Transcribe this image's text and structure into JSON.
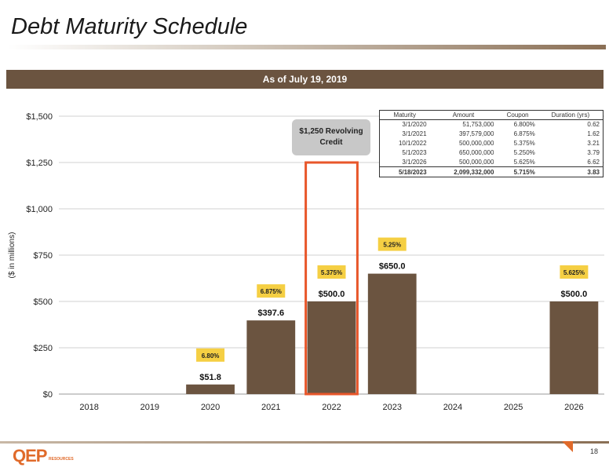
{
  "slide": {
    "title": "Debt Maturity Schedule",
    "as_of": "As of July 19, 2019",
    "page_number": "18",
    "logo_text": "QEP",
    "logo_subtext": "RESOURCES",
    "callout": "$1,250 Revolving Credit"
  },
  "colors": {
    "bar": "#6b5440",
    "highlight": "#e8562a",
    "label_badge": "#f5cf43",
    "grid": "#d0d0d0"
  },
  "table": {
    "headers": [
      "Maturity",
      "Amount",
      "Coupon",
      "Duration (yrs)"
    ],
    "rows": [
      [
        "3/1/2020",
        "51,753,000",
        "6.800%",
        "0.62"
      ],
      [
        "3/1/2021",
        "397,579,000",
        "6.875%",
        "1.62"
      ],
      [
        "10/1/2022",
        "500,000,000",
        "5.375%",
        "3.21"
      ],
      [
        "5/1/2023",
        "650,000,000",
        "5.250%",
        "3.79"
      ],
      [
        "3/1/2026",
        "500,000,000",
        "5.625%",
        "6.62"
      ]
    ],
    "total": [
      "5/18/2023",
      "2,099,332,000",
      "5.715%",
      "3.83"
    ]
  },
  "chart_data": {
    "type": "bar",
    "title": "",
    "xlabel": "",
    "ylabel": "($ in millions)",
    "categories": [
      "2018",
      "2019",
      "2020",
      "2021",
      "2022",
      "2023",
      "2024",
      "2025",
      "2026"
    ],
    "values": [
      0,
      0,
      51.8,
      397.6,
      500.0,
      650.0,
      0,
      0,
      500.0
    ],
    "value_labels": [
      "",
      "",
      "$51.8",
      "$397.6",
      "$500.0",
      "$650.0",
      "",
      "",
      "$500.0"
    ],
    "coupon_labels": [
      "",
      "",
      "6.80%",
      "6.875%",
      "5.375%",
      "5.25%",
      "",
      "",
      "5.625%"
    ],
    "ylim": [
      0,
      1500
    ],
    "yticks": [
      0,
      250,
      500,
      750,
      1000,
      1250,
      1500
    ],
    "ytick_labels": [
      "$0",
      "$250",
      "$500",
      "$750",
      "$1,000",
      "$1,250",
      "$1,500"
    ],
    "highlight": {
      "category": "2022",
      "value": 1250
    },
    "grid": true,
    "legend": "none"
  }
}
